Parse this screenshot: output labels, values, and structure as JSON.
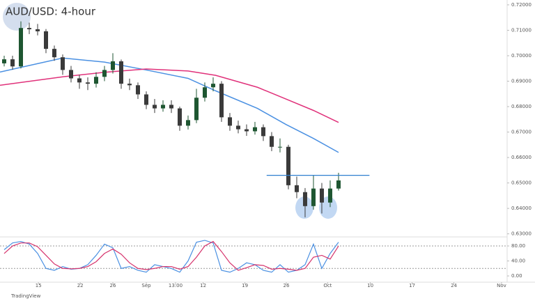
{
  "chart_data": [
    {
      "type": "candlestick",
      "title": "AUD/USD: 4-hour",
      "source": "TradingView",
      "up_color": "#1e5631",
      "down_color": "#3a3a3a",
      "x": [
        0.5,
        1.5,
        2.5,
        3.5,
        4.5,
        5.5,
        6.5,
        7.5,
        8.5,
        9.5,
        10.5,
        11.5,
        12.5,
        13.5,
        14.5,
        15.5,
        16.5,
        17.5,
        18.5,
        19.5,
        20.5,
        21.5,
        22.5,
        23.5,
        24.5,
        25.5,
        26.5,
        27.5,
        28.5,
        29.5,
        30.5,
        31.5,
        32.5,
        33.5,
        34.5,
        35.5,
        36.5,
        37.5,
        38.5,
        39.5,
        40.5
      ],
      "open": [
        0.697,
        0.6986,
        0.6958,
        0.7109,
        0.7104,
        0.7096,
        0.7027,
        0.6994,
        0.6944,
        0.6911,
        0.6895,
        0.689,
        0.6917,
        0.6944,
        0.6978,
        0.689,
        0.6884,
        0.6848,
        0.6807,
        0.6793,
        0.6807,
        0.6793,
        0.6725,
        0.6747,
        0.6835,
        0.6876,
        0.689,
        0.6758,
        0.6725,
        0.6711,
        0.6703,
        0.6719,
        0.6684,
        0.6642,
        0.6642,
        0.6491,
        0.6464,
        0.6409,
        0.6478,
        0.6423,
        0.6478
      ],
      "high": [
        0.7,
        0.7,
        0.7135,
        0.713,
        0.7125,
        0.7105,
        0.704,
        0.7005,
        0.696,
        0.6925,
        0.6915,
        0.6935,
        0.696,
        0.701,
        0.6985,
        0.691,
        0.6895,
        0.686,
        0.683,
        0.6825,
        0.6825,
        0.68,
        0.6765,
        0.687,
        0.6895,
        0.6915,
        0.69,
        0.6775,
        0.6745,
        0.673,
        0.674,
        0.673,
        0.67,
        0.6675,
        0.665,
        0.6525,
        0.648,
        0.653,
        0.65,
        0.651,
        0.654
      ],
      "low": [
        0.6958,
        0.6945,
        0.695,
        0.7085,
        0.708,
        0.701,
        0.698,
        0.6925,
        0.6895,
        0.687,
        0.6865,
        0.6875,
        0.69,
        0.693,
        0.687,
        0.6865,
        0.683,
        0.679,
        0.6775,
        0.678,
        0.6775,
        0.6705,
        0.671,
        0.6735,
        0.682,
        0.686,
        0.674,
        0.6705,
        0.6695,
        0.6685,
        0.669,
        0.6665,
        0.6625,
        0.662,
        0.6475,
        0.644,
        0.6365,
        0.6395,
        0.638,
        0.6405,
        0.647
      ],
      "close": [
        0.6986,
        0.6958,
        0.7109,
        0.7104,
        0.7096,
        0.7027,
        0.6994,
        0.6944,
        0.6911,
        0.6895,
        0.689,
        0.6917,
        0.6944,
        0.6978,
        0.689,
        0.6884,
        0.6848,
        0.6807,
        0.6793,
        0.6807,
        0.6793,
        0.6725,
        0.6747,
        0.6835,
        0.6876,
        0.689,
        0.6758,
        0.6725,
        0.6711,
        0.6703,
        0.6719,
        0.6684,
        0.6642,
        0.6642,
        0.6491,
        0.6464,
        0.6409,
        0.6478,
        0.6423,
        0.6478,
        0.651
      ],
      "series": [
        {
          "color": "#4a90e2",
          "x": [
            0,
            7.5,
            12.5,
            17.5,
            22.5,
            25.8,
            30.8,
            34.2,
            37.5,
            40.5
          ],
          "values": [
            0.6936,
            0.6991,
            0.6975,
            0.6944,
            0.6911,
            0.6862,
            0.6793,
            0.673,
            0.6675,
            0.662
          ]
        },
        {
          "color": "#e0317a",
          "x": [
            0,
            7.5,
            12.5,
            17.5,
            22.5,
            25.8,
            30.8,
            34.2,
            37.5,
            40.5
          ],
          "values": [
            0.6884,
            0.6917,
            0.6935,
            0.6948,
            0.694,
            0.6923,
            0.6876,
            0.683,
            0.6785,
            0.6738
          ]
        }
      ],
      "level_line": {
        "value": 0.653,
        "x": [
          31.9,
          44.2
        ],
        "color": "#2f7fd0"
      },
      "xlim": [
        0,
        60.67
      ],
      "xticks": [
        {
          "value": 4.6,
          "label": "15"
        },
        {
          "value": 9.6,
          "label": "22"
        },
        {
          "value": 13.5,
          "label": "26"
        },
        {
          "value": 17.5,
          "label": "Sep"
        },
        {
          "value": 21,
          "label": "13:00"
        },
        {
          "value": 24.3,
          "label": "12"
        },
        {
          "value": 29.3,
          "label": "19"
        },
        {
          "value": 34.25,
          "label": "26"
        },
        {
          "value": 39.2,
          "label": "Oct"
        },
        {
          "value": 44.3,
          "label": "10"
        },
        {
          "value": 49.3,
          "label": "17"
        },
        {
          "value": 54.3,
          "label": "24"
        },
        {
          "value": 60,
          "label": "Nov"
        }
      ],
      "ylim": [
        0.6288,
        0.7219
      ],
      "yticks": [
        {
          "value": 0.72,
          "label": "0.72000"
        },
        {
          "value": 0.71,
          "label": "0.71000"
        },
        {
          "value": 0.7,
          "label": "0.70000"
        },
        {
          "value": 0.69,
          "label": "0.69000"
        },
        {
          "value": 0.68,
          "label": "0.68000"
        },
        {
          "value": 0.67,
          "label": "0.67000"
        },
        {
          "value": 0.66,
          "label": "0.66000"
        },
        {
          "value": 0.65,
          "label": "0.65000"
        },
        {
          "value": 0.64,
          "label": "0.64000"
        },
        {
          "value": 0.63,
          "label": "0.63000"
        }
      ]
    },
    {
      "type": "line",
      "series": [
        {
          "color": "#4a90e2",
          "values": [
            70,
            88,
            92,
            85,
            60,
            20,
            15,
            25,
            18,
            20,
            30,
            55,
            85,
            75,
            20,
            25,
            15,
            10,
            30,
            25,
            20,
            10,
            40,
            90,
            95,
            88,
            15,
            10,
            20,
            35,
            30,
            15,
            10,
            30,
            10,
            15,
            30,
            85,
            20,
            60,
            90
          ]
        },
        {
          "color": "#d6336c",
          "values": [
            60,
            80,
            88,
            88,
            78,
            55,
            32,
            20,
            19,
            20,
            25,
            38,
            60,
            72,
            58,
            35,
            20,
            17,
            20,
            25,
            25,
            18,
            25,
            50,
            80,
            92,
            65,
            35,
            15,
            22,
            30,
            28,
            18,
            20,
            18,
            15,
            20,
            50,
            55,
            45,
            80
          ]
        }
      ],
      "levels": [
        80,
        20
      ],
      "ylim": [
        -16.7,
        104.2
      ],
      "yticks": [
        {
          "value": 80,
          "label": "80.00"
        },
        {
          "value": 40,
          "label": "40.00"
        },
        {
          "value": 0,
          "label": "0.00"
        }
      ]
    }
  ]
}
